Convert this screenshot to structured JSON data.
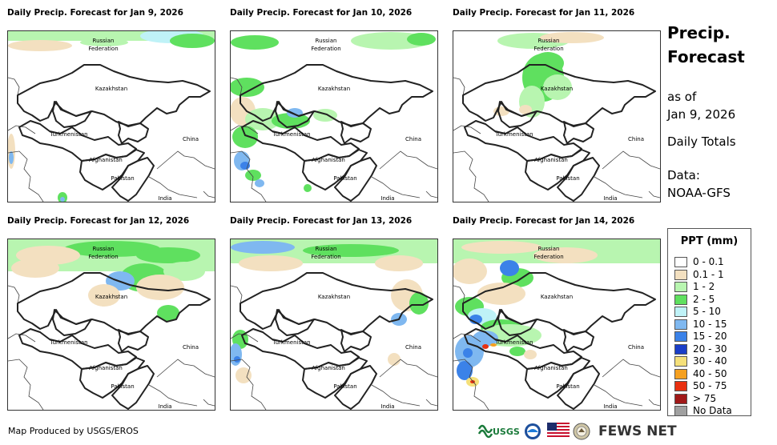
{
  "panels": [
    {
      "title": "Daily Precip. Forecast for Jan 9, 2026",
      "scenario": 0
    },
    {
      "title": "Daily Precip. Forecast for Jan 10, 2026",
      "scenario": 1
    },
    {
      "title": "Daily Precip. Forecast for Jan 11, 2026",
      "scenario": 2
    },
    {
      "title": "Daily Precip. Forecast for Jan 12, 2026",
      "scenario": 3
    },
    {
      "title": "Daily Precip. Forecast for Jan 13, 2026",
      "scenario": 4
    },
    {
      "title": "Daily Precip. Forecast for Jan 14, 2026",
      "scenario": 5
    }
  ],
  "country_labels": {
    "russia": "Russian",
    "federation": "Federation",
    "kazakhstan": "Kazakhstan",
    "turkmenistan": "Turkmenistan",
    "afghanistan": "Afghanistan",
    "pakistan": "Pakistan",
    "india": "India",
    "china": "China"
  },
  "side": {
    "title_line1": "Precip.",
    "title_line2": "Forecast",
    "as_of": "as of",
    "date": "Jan 9, 2026",
    "daily": "Daily Totals",
    "data_label": "Data:",
    "data_source": "NOAA-GFS"
  },
  "legend": {
    "title": "PPT (mm)",
    "items": [
      {
        "label": "0 - 0.1",
        "color": "#ffffff"
      },
      {
        "label": "0.1 - 1",
        "color": "#f3e0c0"
      },
      {
        "label": "1 - 2",
        "color": "#b8f5b0"
      },
      {
        "label": "2 - 5",
        "color": "#5fe05f"
      },
      {
        "label": "5 - 10",
        "color": "#bff2f7"
      },
      {
        "label": "10 - 15",
        "color": "#7fb8f0"
      },
      {
        "label": "15 - 20",
        "color": "#3b82e8"
      },
      {
        "label": "20 - 30",
        "color": "#1a3ec8"
      },
      {
        "label": "30 - 40",
        "color": "#f5e07a"
      },
      {
        "label": "40 - 50",
        "color": "#f5a020"
      },
      {
        "label": "50 - 75",
        "color": "#e83010"
      },
      {
        "label": "> 75",
        "color": "#a01818"
      },
      {
        "label": "No Data",
        "color": "#a0a0a0"
      }
    ]
  },
  "footer": {
    "credit": "Map Produced by USGS/EROS"
  },
  "logos": {
    "usgs": "USGS",
    "fews": "FEWS NET"
  }
}
